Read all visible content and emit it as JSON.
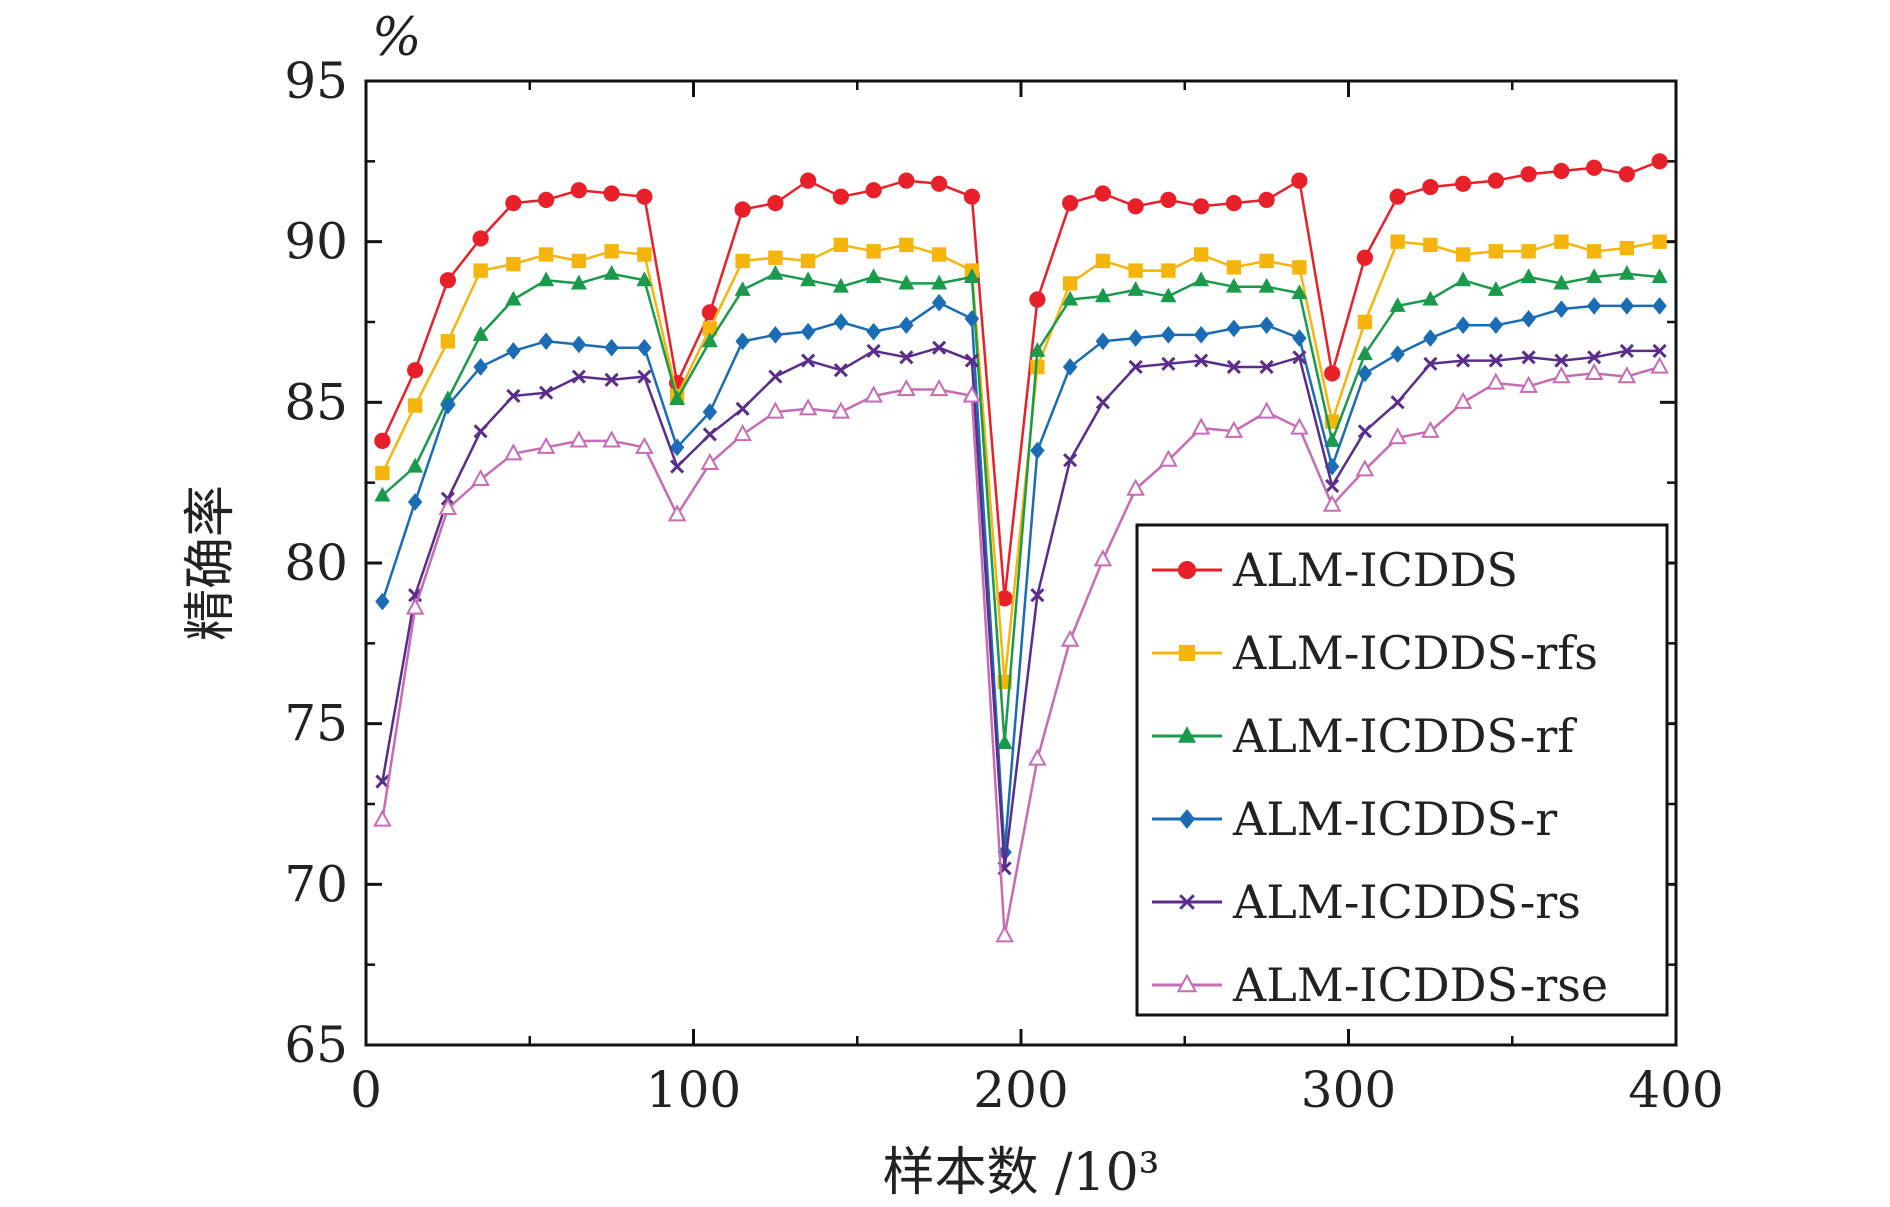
{
  "chart_data": {
    "type": "line",
    "title": "",
    "xlabel": "样本数 /10³",
    "ylabel": "精确率",
    "y_unit": "%",
    "xlim": [
      0,
      400
    ],
    "ylim": [
      65,
      95
    ],
    "xticks": [
      0,
      100,
      200,
      300,
      400
    ],
    "yticks": [
      65,
      70,
      75,
      80,
      85,
      90,
      95
    ],
    "grid": false,
    "legend_position": "lower-right",
    "x": [
      5,
      15,
      25,
      35,
      45,
      55,
      65,
      75,
      85,
      95,
      105,
      115,
      125,
      135,
      145,
      155,
      165,
      175,
      185,
      195,
      205,
      215,
      225,
      235,
      245,
      255,
      265,
      275,
      285,
      295,
      305,
      315,
      325,
      335,
      345,
      355,
      365,
      375,
      385,
      395
    ],
    "series": [
      {
        "name": "ALM-ICDDS",
        "color": "#e8202a",
        "marker": "circle",
        "values": [
          83.8,
          86.0,
          88.8,
          90.1,
          91.2,
          91.3,
          91.6,
          91.5,
          91.4,
          85.6,
          87.8,
          91.0,
          91.2,
          91.9,
          91.4,
          91.6,
          91.9,
          91.8,
          91.4,
          78.9,
          88.2,
          91.2,
          91.5,
          91.1,
          91.3,
          91.1,
          91.2,
          91.3,
          91.9,
          85.9,
          89.5,
          91.4,
          91.7,
          91.8,
          91.9,
          92.1,
          92.2,
          92.3,
          92.1,
          92.5
        ]
      },
      {
        "name": "ALM-ICDDS-rfs",
        "color": "#f5b50c",
        "marker": "square",
        "values": [
          82.8,
          84.9,
          86.9,
          89.1,
          89.3,
          89.6,
          89.4,
          89.7,
          89.6,
          85.2,
          87.3,
          89.4,
          89.5,
          89.4,
          89.9,
          89.7,
          89.9,
          89.6,
          89.1,
          76.3,
          86.1,
          88.7,
          89.4,
          89.1,
          89.1,
          89.6,
          89.2,
          89.4,
          89.2,
          84.4,
          87.5,
          90.0,
          89.9,
          89.6,
          89.7,
          89.7,
          90.0,
          89.7,
          89.8,
          90.0
        ]
      },
      {
        "name": "ALM-ICDDS-rf",
        "color": "#1a9b4b",
        "marker": "triangle",
        "values": [
          82.1,
          83.0,
          85.1,
          87.1,
          88.2,
          88.8,
          88.7,
          89.0,
          88.8,
          85.1,
          86.9,
          88.5,
          89.0,
          88.8,
          88.6,
          88.9,
          88.7,
          88.7,
          88.9,
          74.4,
          86.6,
          88.2,
          88.3,
          88.5,
          88.3,
          88.8,
          88.6,
          88.6,
          88.4,
          83.8,
          86.5,
          88.0,
          88.2,
          88.8,
          88.5,
          88.9,
          88.7,
          88.9,
          89.0,
          88.9
        ]
      },
      {
        "name": "ALM-ICDDS-r",
        "color": "#1a6db5",
        "marker": "diamond",
        "values": [
          78.8,
          81.9,
          84.9,
          86.1,
          86.6,
          86.9,
          86.8,
          86.7,
          86.7,
          83.6,
          84.7,
          86.9,
          87.1,
          87.2,
          87.5,
          87.2,
          87.4,
          88.1,
          87.6,
          71.0,
          83.5,
          86.1,
          86.9,
          87.0,
          87.1,
          87.1,
          87.3,
          87.4,
          87.0,
          83.0,
          85.9,
          86.5,
          87.0,
          87.4,
          87.4,
          87.6,
          87.9,
          88.0,
          88.0,
          88.0
        ]
      },
      {
        "name": "ALM-ICDDS-rs",
        "color": "#5a2d8c",
        "marker": "x",
        "values": [
          73.2,
          79.0,
          82.0,
          84.1,
          85.2,
          85.3,
          85.8,
          85.7,
          85.8,
          83.0,
          84.0,
          84.8,
          85.8,
          86.3,
          86.0,
          86.6,
          86.4,
          86.7,
          86.3,
          70.5,
          79.0,
          83.2,
          85.0,
          86.1,
          86.2,
          86.3,
          86.1,
          86.1,
          86.4,
          82.4,
          84.1,
          85.0,
          86.2,
          86.3,
          86.3,
          86.4,
          86.3,
          86.4,
          86.6,
          86.6
        ]
      },
      {
        "name": "ALM-ICDDS-rse",
        "color": "#c76bb5",
        "marker": "triangle-open",
        "values": [
          72.0,
          78.6,
          81.7,
          82.6,
          83.4,
          83.6,
          83.8,
          83.8,
          83.6,
          81.5,
          83.1,
          84.0,
          84.7,
          84.8,
          84.7,
          85.2,
          85.4,
          85.4,
          85.2,
          68.4,
          73.9,
          77.6,
          80.1,
          82.3,
          83.2,
          84.2,
          84.1,
          84.7,
          84.2,
          81.8,
          82.9,
          83.9,
          84.1,
          85.0,
          85.6,
          85.5,
          85.8,
          85.9,
          85.8,
          86.1
        ]
      }
    ]
  }
}
